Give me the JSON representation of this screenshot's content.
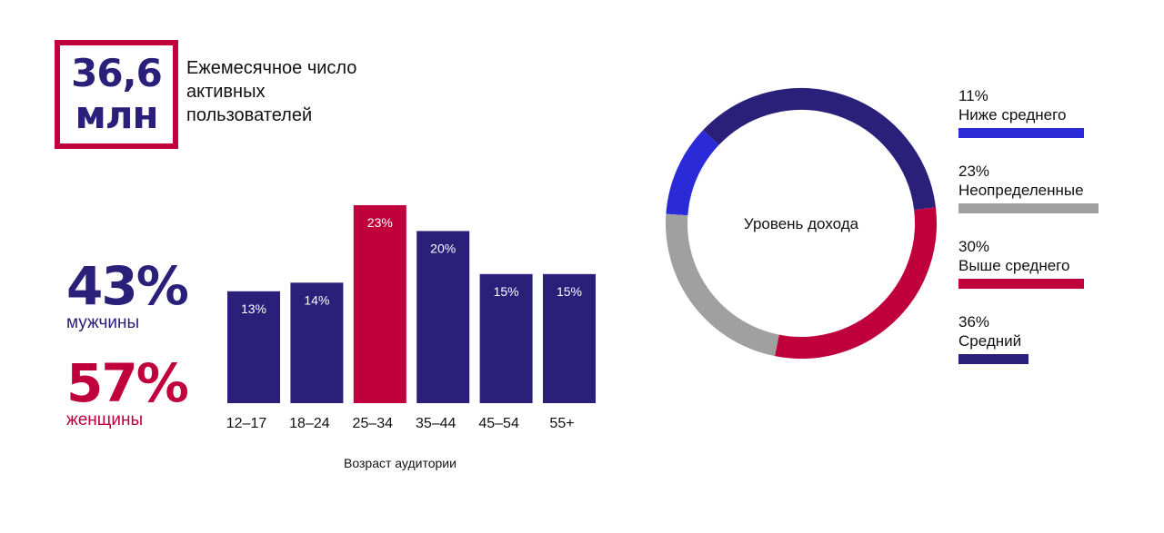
{
  "stats": {
    "mau_value_line1": "36,6",
    "mau_value_line2": "млн",
    "mau_label": "Ежемесячное число активных пользователей",
    "men_pct": "43%",
    "men_label": "мужчины",
    "women_pct": "57%",
    "women_label": "женщины"
  },
  "colors": {
    "primary": "#2b2079",
    "accent": "#c0003c",
    "blue": "#2a2ad8",
    "gray": "#a0a0a0"
  },
  "chart_data": [
    {
      "type": "bar",
      "xlabel": "Возраст аудитории",
      "ylabel": "",
      "ylim": [
        0,
        25
      ],
      "categories": [
        "12–17",
        "18–24",
        "25–34",
        "35–44",
        "45–54",
        "55+"
      ],
      "values": [
        13,
        14,
        23,
        20,
        15,
        15
      ],
      "value_labels": [
        "13%",
        "14%",
        "23%",
        "20%",
        "15%",
        "15%"
      ],
      "highlight_index": 2
    },
    {
      "type": "pie",
      "style": "donut",
      "center_label": "Уровень дохода",
      "slices": [
        {
          "name": "Ниже среднего",
          "value": 11,
          "label": "11%",
          "color": "#2a2ad8"
        },
        {
          "name": "Средний",
          "value": 36,
          "label": "36%",
          "color": "#2b2079"
        },
        {
          "name": "Выше среднего",
          "value": 30,
          "label": "30%",
          "color": "#c0003c"
        },
        {
          "name": "Неопределенные",
          "value": 23,
          "label": "23%",
          "color": "#a0a0a0"
        }
      ],
      "legend_order": [
        0,
        3,
        2,
        1
      ],
      "legend": "right"
    }
  ]
}
